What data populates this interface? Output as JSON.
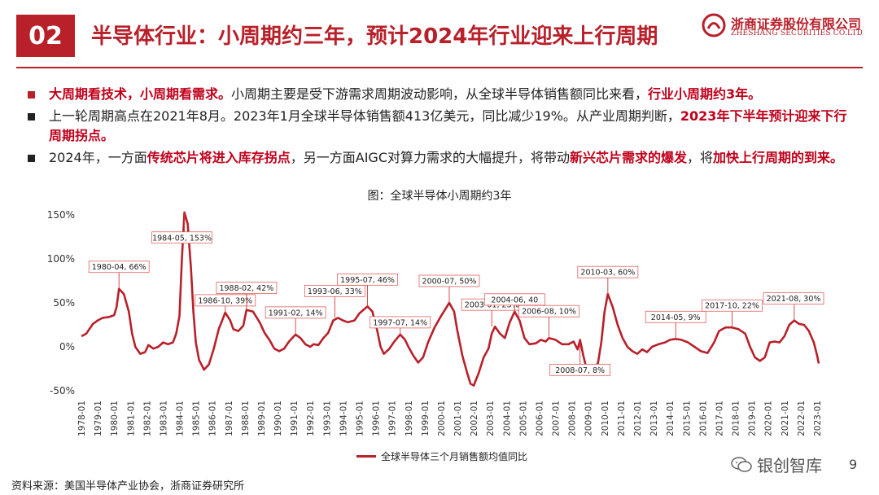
{
  "header": {
    "badge": "02",
    "title": "半导体行业：小周期约三年，预计2024年行业迎来上行周期",
    "logo_cn": "浙商证券股份有限公司",
    "logo_en": "ZHESHANG SECURITIES CO.LTD"
  },
  "bullets": [
    {
      "marker_color": "#b8202a",
      "segments": [
        {
          "text": "大周期看技术，小周期看需求。",
          "hl": true
        },
        {
          "text": "小周期主要是受下游需求周期波动影响，从全球半导体销售额同比来看，",
          "hl": false
        },
        {
          "text": "行业小周期约3年。",
          "hl": true
        }
      ]
    },
    {
      "marker_color": "#222222",
      "segments": [
        {
          "text": "上一轮周期高点在2021年8月。2023年1月全球半导体销售额413亿美元，同比减少19%。从产业周期判断，",
          "hl": false
        },
        {
          "text": "2023年下半年预计迎来下行周期拐点。",
          "hl": true
        }
      ]
    },
    {
      "marker_color": "#222222",
      "segments": [
        {
          "text": "2024年，一方面",
          "hl": false
        },
        {
          "text": "传统芯片将进入库存拐点",
          "hl": true
        },
        {
          "text": "，另一方面AIGC对算力需求的大幅提升，将带动",
          "hl": false
        },
        {
          "text": "新兴芯片需求的爆发",
          "hl": true
        },
        {
          "text": "，将",
          "hl": false
        },
        {
          "text": "加快上行周期的到来。",
          "hl": true
        }
      ]
    }
  ],
  "chart_data": {
    "type": "line",
    "title": "图：全球半导体小周期约3年",
    "ylim": [
      -50,
      150
    ],
    "yticks": [
      "150%",
      "100%",
      "50%",
      "0%",
      "-50%"
    ],
    "x_tick_labels": [
      "1978-01",
      "1979-01",
      "1980-01",
      "1981-01",
      "1982-01",
      "1983-01",
      "1984-01",
      "1985-01",
      "1986-01",
      "1987-01",
      "1988-01",
      "1989-01",
      "1990-01",
      "1991-01",
      "1992-01",
      "1993-01",
      "1994-01",
      "1995-01",
      "1996-01",
      "1997-01",
      "1998-01",
      "1999-01",
      "2000-01",
      "2001-01",
      "2002-01",
      "2003-01",
      "2004-01",
      "2005-01",
      "2006-01",
      "2007-01",
      "2008-01",
      "2009-01",
      "2010-01",
      "2011-01",
      "2012-01",
      "2013-01",
      "2014-01",
      "2015-01",
      "2016-01",
      "2017-01",
      "2018-01",
      "2019-01",
      "2020-01",
      "2021-01",
      "2022-01",
      "2023-01"
    ],
    "series": [
      {
        "name": "全球半导体三个月销售额均值同比",
        "color": "#b8202a",
        "points": [
          [
            1978.0,
            12
          ],
          [
            1978.3,
            15
          ],
          [
            1978.7,
            26
          ],
          [
            1979.0,
            30
          ],
          [
            1979.3,
            33
          ],
          [
            1979.7,
            34
          ],
          [
            1980.0,
            36
          ],
          [
            1980.15,
            45
          ],
          [
            1980.3,
            66
          ],
          [
            1980.6,
            60
          ],
          [
            1980.9,
            40
          ],
          [
            1981.1,
            15
          ],
          [
            1981.3,
            0
          ],
          [
            1981.6,
            -8
          ],
          [
            1981.9,
            -6
          ],
          [
            1982.1,
            2
          ],
          [
            1982.4,
            -2
          ],
          [
            1982.7,
            0
          ],
          [
            1983.0,
            5
          ],
          [
            1983.3,
            3
          ],
          [
            1983.6,
            5
          ],
          [
            1983.8,
            15
          ],
          [
            1984.0,
            35
          ],
          [
            1984.15,
            100
          ],
          [
            1984.3,
            153
          ],
          [
            1984.5,
            140
          ],
          [
            1984.7,
            90
          ],
          [
            1984.85,
            40
          ],
          [
            1985.0,
            5
          ],
          [
            1985.2,
            -15
          ],
          [
            1985.5,
            -26
          ],
          [
            1985.8,
            -20
          ],
          [
            1986.1,
            -2
          ],
          [
            1986.4,
            20
          ],
          [
            1986.8,
            39
          ],
          [
            1987.1,
            30
          ],
          [
            1987.3,
            20
          ],
          [
            1987.6,
            18
          ],
          [
            1987.9,
            24
          ],
          [
            1988.1,
            42
          ],
          [
            1988.5,
            40
          ],
          [
            1988.9,
            28
          ],
          [
            1989.2,
            16
          ],
          [
            1989.5,
            8
          ],
          [
            1989.8,
            -2
          ],
          [
            1990.1,
            -5
          ],
          [
            1990.4,
            -2
          ],
          [
            1990.7,
            6
          ],
          [
            1991.1,
            14
          ],
          [
            1991.4,
            10
          ],
          [
            1991.7,
            3
          ],
          [
            1992.0,
            0
          ],
          [
            1992.2,
            3
          ],
          [
            1992.5,
            2
          ],
          [
            1992.8,
            10
          ],
          [
            1993.1,
            16
          ],
          [
            1993.4,
            30
          ],
          [
            1993.7,
            33
          ],
          [
            1994.0,
            30
          ],
          [
            1994.3,
            28
          ],
          [
            1994.7,
            30
          ],
          [
            1995.0,
            38
          ],
          [
            1995.5,
            46
          ],
          [
            1995.8,
            40
          ],
          [
            1996.1,
            18
          ],
          [
            1996.3,
            0
          ],
          [
            1996.5,
            -8
          ],
          [
            1996.8,
            -3
          ],
          [
            1997.1,
            5
          ],
          [
            1997.5,
            14
          ],
          [
            1997.8,
            8
          ],
          [
            1998.0,
            0
          ],
          [
            1998.3,
            -10
          ],
          [
            1998.6,
            -18
          ],
          [
            1998.9,
            -12
          ],
          [
            1999.2,
            5
          ],
          [
            1999.6,
            22
          ],
          [
            2000.0,
            35
          ],
          [
            2000.5,
            50
          ],
          [
            2000.8,
            40
          ],
          [
            2001.0,
            18
          ],
          [
            2001.3,
            -10
          ],
          [
            2001.6,
            -30
          ],
          [
            2001.8,
            -42
          ],
          [
            2002.0,
            -44
          ],
          [
            2002.3,
            -30
          ],
          [
            2002.6,
            -12
          ],
          [
            2002.9,
            -2
          ],
          [
            2003.1,
            15
          ],
          [
            2003.3,
            23
          ],
          [
            2003.6,
            15
          ],
          [
            2003.9,
            10
          ],
          [
            2004.2,
            28
          ],
          [
            2004.5,
            40
          ],
          [
            2004.8,
            30
          ],
          [
            2005.1,
            10
          ],
          [
            2005.4,
            3
          ],
          [
            2005.8,
            4
          ],
          [
            2006.1,
            8
          ],
          [
            2006.4,
            6
          ],
          [
            2006.6,
            10
          ],
          [
            2007.0,
            8
          ],
          [
            2007.4,
            3
          ],
          [
            2007.8,
            3
          ],
          [
            2008.1,
            6
          ],
          [
            2008.35,
            -3
          ],
          [
            2008.5,
            8
          ],
          [
            2008.7,
            -10
          ],
          [
            2008.9,
            -25
          ],
          [
            2009.1,
            -30
          ],
          [
            2009.4,
            -24
          ],
          [
            2009.6,
            -18
          ],
          [
            2009.8,
            5
          ],
          [
            2010.0,
            40
          ],
          [
            2010.2,
            60
          ],
          [
            2010.5,
            45
          ],
          [
            2010.8,
            25
          ],
          [
            2011.1,
            10
          ],
          [
            2011.4,
            0
          ],
          [
            2011.7,
            -5
          ],
          [
            2012.0,
            -8
          ],
          [
            2012.3,
            -3
          ],
          [
            2012.6,
            -6
          ],
          [
            2012.9,
            0
          ],
          [
            2013.3,
            3
          ],
          [
            2013.7,
            5
          ],
          [
            2014.0,
            8
          ],
          [
            2014.35,
            9
          ],
          [
            2014.7,
            8
          ],
          [
            2015.1,
            5
          ],
          [
            2015.5,
            0
          ],
          [
            2015.9,
            -5
          ],
          [
            2016.3,
            -7
          ],
          [
            2016.7,
            5
          ],
          [
            2017.0,
            18
          ],
          [
            2017.4,
            22
          ],
          [
            2017.8,
            22
          ],
          [
            2018.2,
            20
          ],
          [
            2018.6,
            15
          ],
          [
            2018.9,
            0
          ],
          [
            2019.2,
            -12
          ],
          [
            2019.5,
            -16
          ],
          [
            2019.8,
            -12
          ],
          [
            2020.1,
            5
          ],
          [
            2020.4,
            6
          ],
          [
            2020.7,
            5
          ],
          [
            2021.0,
            12
          ],
          [
            2021.3,
            25
          ],
          [
            2021.6,
            30
          ],
          [
            2021.9,
            26
          ],
          [
            2022.2,
            25
          ],
          [
            2022.5,
            18
          ],
          [
            2022.8,
            5
          ],
          [
            2023.0,
            -10
          ],
          [
            2023.1,
            -19
          ]
        ]
      }
    ],
    "annotations": [
      {
        "text": "1980-04, 66%",
        "x": 1980.3,
        "y": 66
      },
      {
        "text": "1984-05, 153%",
        "x": 1984.3,
        "y": 153
      },
      {
        "text": "1986-10, 39%",
        "x": 1986.8,
        "y": 39
      },
      {
        "text": "1988-02, 42%",
        "x": 1988.1,
        "y": 42
      },
      {
        "text": "1991-02, 14%",
        "x": 1991.1,
        "y": 14
      },
      {
        "text": "1993-06, 33%",
        "x": 1993.5,
        "y": 33
      },
      {
        "text": "1995-07, 46%",
        "x": 1995.5,
        "y": 46
      },
      {
        "text": "1997-07, 14%",
        "x": 1997.5,
        "y": 14
      },
      {
        "text": "2000-07, 50%",
        "x": 2000.5,
        "y": 50
      },
      {
        "text": "2003-01, 23%",
        "x": 2003.1,
        "y": 23
      },
      {
        "text": "2004-06, 40",
        "x": 2004.5,
        "y": 40
      },
      {
        "text": "2006-08, 10%",
        "x": 2006.6,
        "y": 10
      },
      {
        "text": "2008-07, 8%",
        "x": 2008.5,
        "y": 8
      },
      {
        "text": "2010-03, 60%",
        "x": 2010.2,
        "y": 60
      },
      {
        "text": "2014-05, 9%",
        "x": 2014.35,
        "y": 9
      },
      {
        "text": "2017-10, 22%",
        "x": 2017.8,
        "y": 22
      },
      {
        "text": "2021-08, 30%",
        "x": 2021.6,
        "y": 30
      }
    ],
    "legend_placement": "bottom-center",
    "grid": false
  },
  "footer": {
    "source": "资料来源：美国半导体产业协会，浙商证券研究所",
    "watermark": "银创智库",
    "page": "9"
  }
}
